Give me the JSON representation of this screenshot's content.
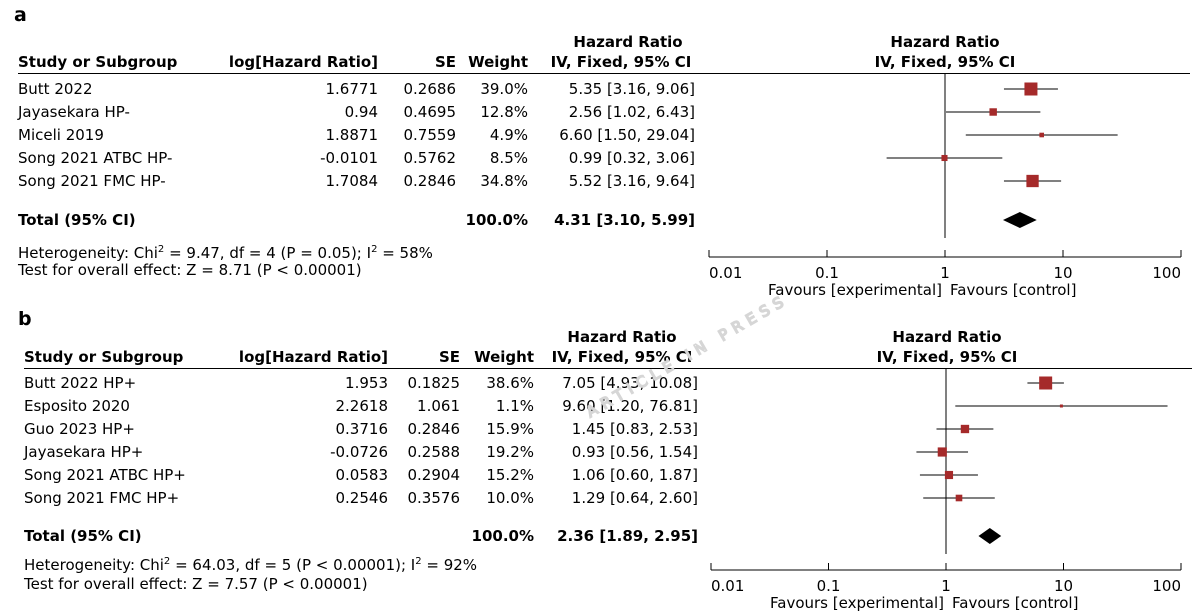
{
  "chart_data": [
    {
      "type": "forest",
      "panel": "a",
      "columns": {
        "study": "Study or Subgroup",
        "lhr": "log[Hazard Ratio]",
        "se": "SE",
        "weight": "Weight",
        "hr_top": "Hazard Ratio",
        "hr_sub": "IV, Fixed, 95% CI",
        "plot_top": "Hazard Ratio",
        "plot_sub": "IV, Fixed, 95% CI"
      },
      "studies": [
        {
          "name": "Butt 2022",
          "lhr": "1.6771",
          "se": "0.2686",
          "weight": "39.0%",
          "ci_text": "5.35 [3.16, 9.06]",
          "hr": 5.35,
          "lo": 3.16,
          "hi": 9.06,
          "w": 39.0
        },
        {
          "name": "Jayasekara HP-",
          "lhr": "0.94",
          "se": "0.4695",
          "weight": "12.8%",
          "ci_text": "2.56 [1.02, 6.43]",
          "hr": 2.56,
          "lo": 1.02,
          "hi": 6.43,
          "w": 12.8
        },
        {
          "name": "Miceli 2019",
          "lhr": "1.8871",
          "se": "0.7559",
          "weight": "4.9%",
          "ci_text": "6.60 [1.50, 29.04]",
          "hr": 6.6,
          "lo": 1.5,
          "hi": 29.04,
          "w": 4.9
        },
        {
          "name": "Song 2021 ATBC HP-",
          "lhr": "-0.0101",
          "se": "0.5762",
          "weight": "8.5%",
          "ci_text": "0.99 [0.32, 3.06]",
          "hr": 0.99,
          "lo": 0.32,
          "hi": 3.06,
          "w": 8.5
        },
        {
          "name": "Song 2021 FMC HP-",
          "lhr": "1.7084",
          "se": "0.2846",
          "weight": "34.8%",
          "ci_text": "5.52 [3.16, 9.64]",
          "hr": 5.52,
          "lo": 3.16,
          "hi": 9.64,
          "w": 34.8
        }
      ],
      "total": {
        "label": "Total (95% CI)",
        "weight": "100.0%",
        "ci_text": "4.31 [3.10, 5.99]",
        "hr": 4.31,
        "lo": 3.1,
        "hi": 5.99
      },
      "heterogeneity_pre": "Heterogeneity: Chi",
      "heterogeneity_post": " = 9.47, df = 4 (P = 0.05); I",
      "heterogeneity_end": " = 58%",
      "overall_effect": "Test for overall effect: Z = 8.71 (P < 0.00001)",
      "xscale": "log",
      "xlim": [
        0.01,
        100
      ],
      "ticks": [
        "0.01",
        "0.1",
        "1",
        "10",
        "100"
      ],
      "xlabel_left": "Favours [experimental]",
      "xlabel_right": "Favours [control]"
    },
    {
      "type": "forest",
      "panel": "b",
      "columns": {
        "study": "Study or Subgroup",
        "lhr": "log[Hazard Ratio]",
        "se": "SE",
        "weight": "Weight",
        "hr_top": "Hazard Ratio",
        "hr_sub": "IV, Fixed, 95% CI",
        "plot_top": "Hazard Ratio",
        "plot_sub": "IV, Fixed, 95% CI"
      },
      "studies": [
        {
          "name": "Butt 2022 HP+",
          "lhr": "1.953",
          "se": "0.1825",
          "weight": "38.6%",
          "ci_text": "7.05 [4.93, 10.08]",
          "hr": 7.05,
          "lo": 4.93,
          "hi": 10.08,
          "w": 38.6
        },
        {
          "name": "Esposito 2020",
          "lhr": "2.2618",
          "se": "1.061",
          "weight": "1.1%",
          "ci_text": "9.60 [1.20, 76.81]",
          "hr": 9.6,
          "lo": 1.2,
          "hi": 76.81,
          "w": 1.1
        },
        {
          "name": "Guo 2023 HP+",
          "lhr": "0.3716",
          "se": "0.2846",
          "weight": "15.9%",
          "ci_text": "1.45 [0.83, 2.53]",
          "hr": 1.45,
          "lo": 0.83,
          "hi": 2.53,
          "w": 15.9
        },
        {
          "name": "Jayasekara HP+",
          "lhr": "-0.0726",
          "se": "0.2588",
          "weight": "19.2%",
          "ci_text": "0.93 [0.56, 1.54]",
          "hr": 0.93,
          "lo": 0.56,
          "hi": 1.54,
          "w": 19.2
        },
        {
          "name": "Song 2021 ATBC HP+",
          "lhr": "0.0583",
          "se": "0.2904",
          "weight": "15.2%",
          "ci_text": "1.06 [0.60, 1.87]",
          "hr": 1.06,
          "lo": 0.6,
          "hi": 1.87,
          "w": 15.2
        },
        {
          "name": "Song 2021 FMC HP+",
          "lhr": "0.2546",
          "se": "0.3576",
          "weight": "10.0%",
          "ci_text": "1.29 [0.64, 2.60]",
          "hr": 1.29,
          "lo": 0.64,
          "hi": 2.6,
          "w": 10.0
        }
      ],
      "total": {
        "label": "Total (95% CI)",
        "weight": "100.0%",
        "ci_text": "2.36 [1.89, 2.95]",
        "hr": 2.36,
        "lo": 1.89,
        "hi": 2.95
      },
      "heterogeneity_pre": "Heterogeneity: Chi",
      "heterogeneity_post": " = 64.03, df = 5 (P < 0.00001); I",
      "heterogeneity_end": " = 92%",
      "overall_effect": "Test for overall effect: Z = 7.57 (P < 0.00001)",
      "xscale": "log",
      "xlim": [
        0.01,
        100
      ],
      "ticks": [
        "0.01",
        "0.1",
        "1",
        "10",
        "100"
      ],
      "xlabel_left": "Favours [experimental]",
      "xlabel_right": "Favours [control]"
    }
  ],
  "colors": {
    "marker": "#a52a2a",
    "line": "#000000",
    "watermark": "#cfcfcf"
  },
  "watermark": "ARTICLE IN PRESS"
}
